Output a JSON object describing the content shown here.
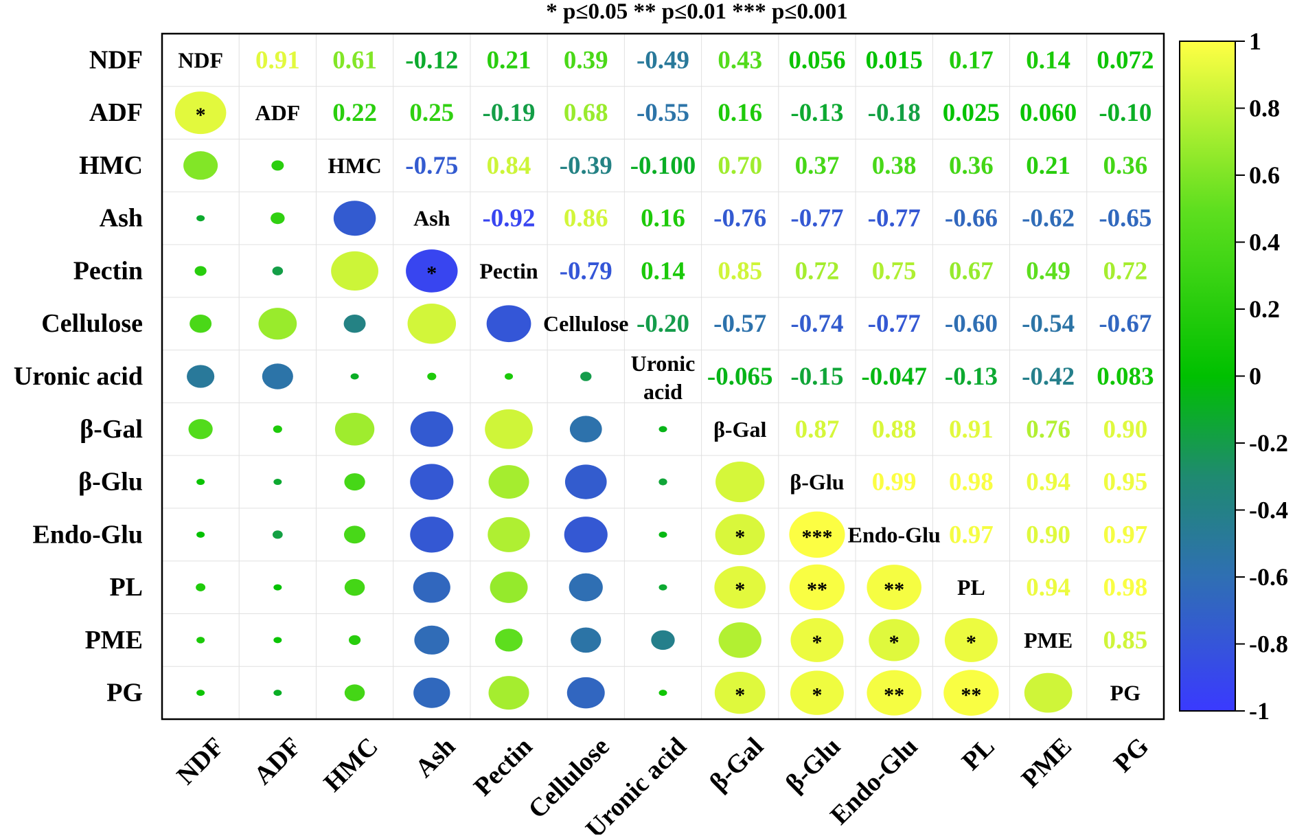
{
  "chart_data": {
    "type": "heatmap",
    "subtype": "correlation-matrix",
    "title": "* p≤0.05   ** p≤0.01   *** p≤0.001",
    "variables": [
      "NDF",
      "ADF",
      "HMC",
      "Ash",
      "Pectin",
      "Cellulose",
      "Uronic acid",
      "β-Gal",
      "β-Glu",
      "Endo-Glu",
      "PL",
      "PME",
      "PG"
    ],
    "diagonal_labels": [
      "NDF",
      "ADF",
      "HMC",
      "Ash",
      "Pectin",
      "Cellulose",
      "Uronic\nacid",
      "β-Gal",
      "β-Glu",
      "Endo-Glu",
      "PL",
      "PME",
      "PG"
    ],
    "upper_labels": [
      [
        null,
        "0.91",
        "0.61",
        "-0.12",
        "0.21",
        "0.39",
        "-0.49",
        "0.43",
        "0.056",
        "0.015",
        "0.17",
        "0.14",
        "0.072"
      ],
      [
        null,
        null,
        "0.22",
        "0.25",
        "-0.19",
        "0.68",
        "-0.55",
        "0.16",
        "-0.13",
        "-0.18",
        "0.025",
        "0.060",
        "-0.10"
      ],
      [
        null,
        null,
        null,
        "-0.75",
        "0.84",
        "-0.39",
        "-0.100",
        "0.70",
        "0.37",
        "0.38",
        "0.36",
        "0.21",
        "0.36"
      ],
      [
        null,
        null,
        null,
        null,
        "-0.92",
        "0.86",
        "0.16",
        "-0.76",
        "-0.77",
        "-0.77",
        "-0.66",
        "-0.62",
        "-0.65"
      ],
      [
        null,
        null,
        null,
        null,
        null,
        "-0.79",
        "0.14",
        "0.85",
        "0.72",
        "0.75",
        "0.67",
        "0.49",
        "0.72"
      ],
      [
        null,
        null,
        null,
        null,
        null,
        null,
        "-0.20",
        "-0.57",
        "-0.74",
        "-0.77",
        "-0.60",
        "-0.54",
        "-0.67"
      ],
      [
        null,
        null,
        null,
        null,
        null,
        null,
        null,
        "-0.065",
        "-0.15",
        "-0.047",
        "-0.13",
        "-0.42",
        "0.083"
      ],
      [
        null,
        null,
        null,
        null,
        null,
        null,
        null,
        null,
        "0.87",
        "0.88",
        "0.91",
        "0.76",
        "0.90"
      ],
      [
        null,
        null,
        null,
        null,
        null,
        null,
        null,
        null,
        null,
        "0.99",
        "0.98",
        "0.94",
        "0.95"
      ],
      [
        null,
        null,
        null,
        null,
        null,
        null,
        null,
        null,
        null,
        null,
        "0.97",
        "0.90",
        "0.97"
      ],
      [
        null,
        null,
        null,
        null,
        null,
        null,
        null,
        null,
        null,
        null,
        null,
        "0.94",
        "0.98"
      ],
      [
        null,
        null,
        null,
        null,
        null,
        null,
        null,
        null,
        null,
        null,
        null,
        null,
        "0.85"
      ],
      [
        null,
        null,
        null,
        null,
        null,
        null,
        null,
        null,
        null,
        null,
        null,
        null,
        null
      ]
    ],
    "significance": [
      [
        null,
        null,
        null,
        null,
        null,
        null,
        null,
        null,
        null,
        null,
        null,
        null,
        null
      ],
      [
        "*",
        null,
        null,
        null,
        null,
        null,
        null,
        null,
        null,
        null,
        null,
        null,
        null
      ],
      [
        null,
        null,
        null,
        null,
        null,
        null,
        null,
        null,
        null,
        null,
        null,
        null,
        null
      ],
      [
        null,
        null,
        null,
        null,
        null,
        null,
        null,
        null,
        null,
        null,
        null,
        null,
        null
      ],
      [
        null,
        null,
        null,
        "*",
        null,
        null,
        null,
        null,
        null,
        null,
        null,
        null,
        null
      ],
      [
        null,
        null,
        null,
        null,
        null,
        null,
        null,
        null,
        null,
        null,
        null,
        null,
        null
      ],
      [
        null,
        null,
        null,
        null,
        null,
        null,
        null,
        null,
        null,
        null,
        null,
        null,
        null
      ],
      [
        null,
        null,
        null,
        null,
        null,
        null,
        null,
        null,
        null,
        null,
        null,
        null,
        null
      ],
      [
        null,
        null,
        null,
        null,
        null,
        null,
        null,
        null,
        null,
        null,
        null,
        null,
        null
      ],
      [
        null,
        null,
        null,
        null,
        null,
        null,
        null,
        "*",
        "***",
        null,
        null,
        null,
        null
      ],
      [
        null,
        null,
        null,
        null,
        null,
        null,
        null,
        "*",
        "**",
        "**",
        null,
        null,
        null
      ],
      [
        null,
        null,
        null,
        null,
        null,
        null,
        null,
        null,
        "*",
        "*",
        "*",
        null,
        null
      ],
      [
        null,
        null,
        null,
        null,
        null,
        null,
        null,
        "*",
        "*",
        "**",
        "**",
        null,
        null
      ]
    ],
    "colorbar": {
      "range": [
        -1,
        1
      ],
      "tick_labels": [
        "1",
        "0.8",
        "0.6",
        "0.4",
        "0.2",
        "0",
        "-0.2",
        "-0.4",
        "-0.6",
        "-0.8",
        "-1"
      ],
      "colors": {
        "neg": "#3a3aff",
        "mid_neg": "#2f6fb3",
        "teal": "#1f8a70",
        "zero": "#00c000",
        "mid_pos": "#5fdf1f",
        "pos": "#ffff44"
      }
    }
  }
}
